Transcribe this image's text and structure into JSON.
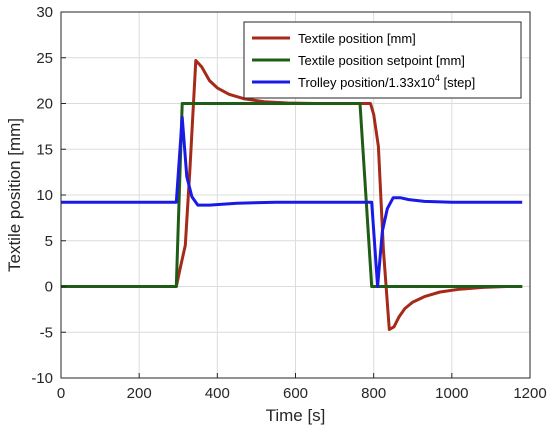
{
  "chart_data": {
    "type": "line",
    "title": "",
    "xlabel": "Time [s]",
    "ylabel": "Textile position [mm]",
    "xlim": [
      0,
      1200
    ],
    "ylim": [
      -10,
      30
    ],
    "x_ticks": [
      0,
      200,
      400,
      600,
      800,
      1000,
      1200
    ],
    "y_ticks": [
      -10,
      -5,
      0,
      5,
      10,
      15,
      20,
      25,
      30
    ],
    "x_tick_labels": [
      "0",
      "200",
      "400",
      "600",
      "800",
      "1000",
      "1200"
    ],
    "y_tick_labels": [
      "-10",
      "-5",
      "0",
      "5",
      "10",
      "15",
      "20",
      "25",
      "30"
    ],
    "grid": true,
    "legend_position": "top-right",
    "series": [
      {
        "name": "Textile position [mm]",
        "legend_text": "Textile position [mm]",
        "color": "#a52a1a",
        "x": [
          0,
          295,
          305,
          318,
          330,
          345,
          360,
          380,
          400,
          430,
          470,
          520,
          580,
          650,
          720,
          780,
          792,
          800,
          812,
          825,
          840,
          852,
          865,
          880,
          900,
          930,
          970,
          1020,
          1080,
          1140,
          1180
        ],
        "y": [
          0,
          0,
          2,
          4.5,
          13,
          24.7,
          24,
          22.5,
          21.7,
          21,
          20.5,
          20.2,
          20.05,
          20,
          20,
          20,
          20,
          18.8,
          15.3,
          4,
          -4.7,
          -4.4,
          -3.3,
          -2.4,
          -1.7,
          -1.1,
          -0.6,
          -0.3,
          -0.1,
          0,
          0
        ]
      },
      {
        "name": "Textile position setpoint [mm]",
        "legend_text": "Textile position setpoint [mm]",
        "color": "#1f5c16",
        "x": [
          0,
          295,
          310,
          765,
          795,
          1180
        ],
        "y": [
          0,
          0,
          20,
          20,
          0,
          0
        ]
      },
      {
        "name": "Trolley position/1.33x10^4 [step]",
        "legend_text_main": "Trolley position/1.33x10",
        "legend_text_sup": "4",
        "legend_text_tail": " [step]",
        "color": "#1a1ae6",
        "x": [
          0,
          295,
          310,
          322,
          335,
          350,
          380,
          450,
          550,
          650,
          750,
          795,
          810,
          822,
          835,
          850,
          868,
          890,
          930,
          1000,
          1100,
          1180
        ],
        "y": [
          9.2,
          9.2,
          18.5,
          12,
          9.8,
          8.9,
          8.9,
          9.1,
          9.2,
          9.2,
          9.2,
          9.2,
          0,
          6,
          8.5,
          9.7,
          9.7,
          9.5,
          9.3,
          9.2,
          9.2,
          9.2
        ]
      }
    ]
  }
}
